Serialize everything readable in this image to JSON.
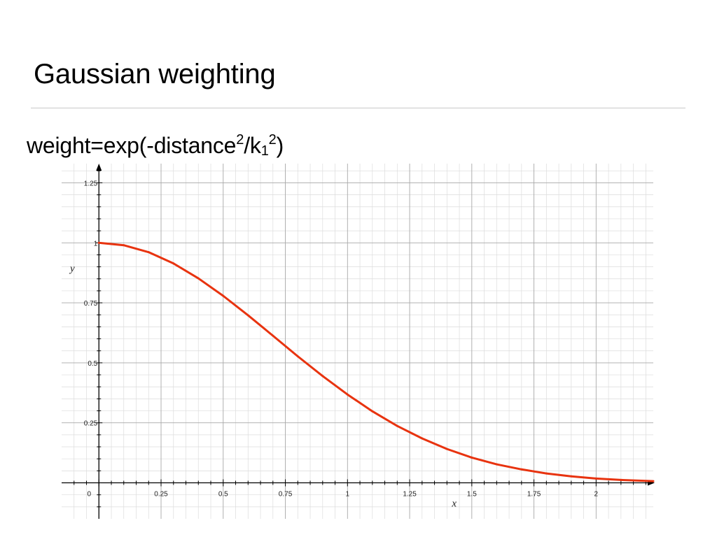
{
  "slide": {
    "title": "Gaussian weighting",
    "formula": {
      "prefix": "weight=exp(-distance",
      "exp1": "2",
      "mid": "/k",
      "sub": "1",
      "exp2": "2",
      "suffix": ")"
    }
  },
  "colors": {
    "curve": "#e8330f",
    "major_grid": "#a8a8a8",
    "minor_grid": "#dcdcdc",
    "axis": "#000000"
  },
  "chart_data": {
    "type": "line",
    "title": "",
    "xlabel": "x",
    "ylabel": "y",
    "xlim": [
      -0.15,
      2.23
    ],
    "ylim": [
      -0.15,
      1.33
    ],
    "x_ticks": [
      0,
      0.25,
      0.5,
      0.75,
      1,
      1.25,
      1.5,
      1.75,
      2
    ],
    "x_tick_labels": [
      "0",
      "0.25",
      "0.5",
      "0.75",
      "1",
      "1.25",
      "1.5",
      "1.75",
      "2"
    ],
    "y_ticks": [
      0.25,
      0.5,
      0.75,
      1,
      1.25
    ],
    "y_tick_labels": [
      "0.25",
      "0.5",
      "0.75",
      "1",
      "1.25"
    ],
    "minor_step": 0.05,
    "grid": true,
    "series": [
      {
        "x": [
          0,
          0.1,
          0.2,
          0.3,
          0.4,
          0.5,
          0.6,
          0.7,
          0.8,
          0.9,
          1.0,
          1.1,
          1.2,
          1.3,
          1.4,
          1.5,
          1.6,
          1.7,
          1.8,
          1.9,
          2.0,
          2.1,
          2.23
        ],
        "y": [
          1.0,
          0.99,
          0.961,
          0.914,
          0.852,
          0.779,
          0.698,
          0.613,
          0.527,
          0.445,
          0.368,
          0.298,
          0.237,
          0.185,
          0.141,
          0.105,
          0.077,
          0.056,
          0.039,
          0.027,
          0.018,
          0.012,
          0.007
        ]
      }
    ]
  }
}
